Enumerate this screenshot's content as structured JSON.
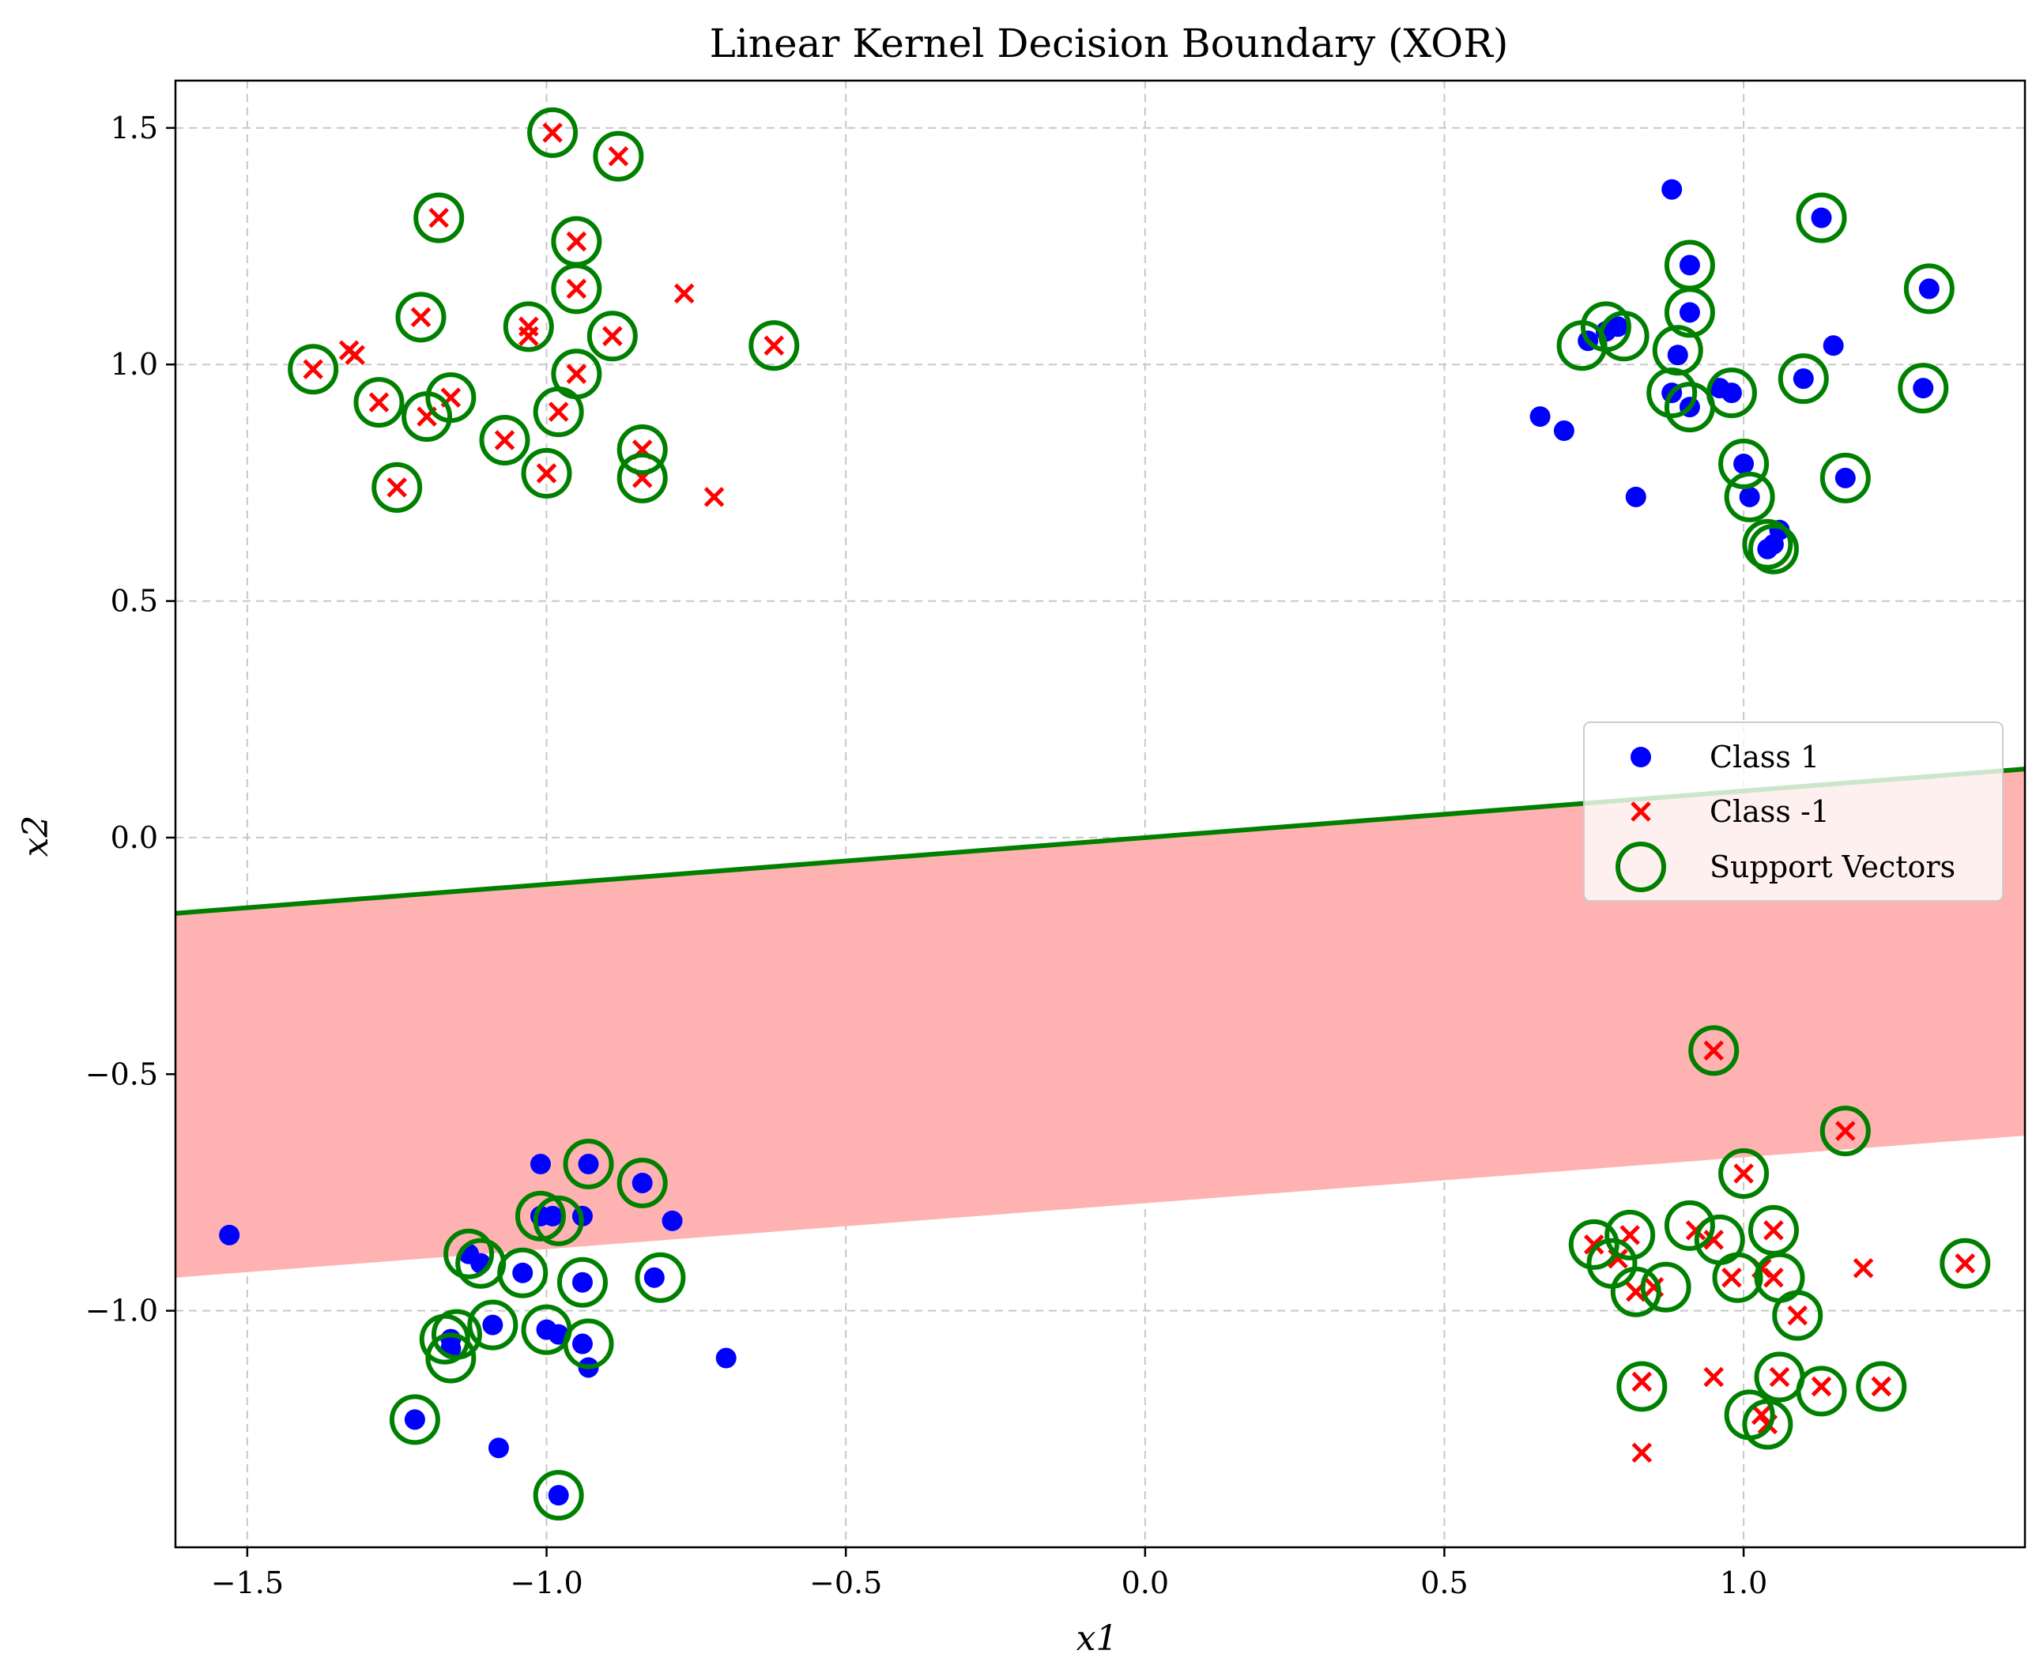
{
  "chart_data": {
    "type": "scatter",
    "title": "Linear Kernel Decision Boundary (XOR)",
    "xlabel": "x1",
    "ylabel": "x2",
    "xlim": [
      -1.62,
      1.47
    ],
    "ylim": [
      -1.5,
      1.6
    ],
    "xticks": [
      -1.5,
      -1.0,
      -0.5,
      0.0,
      0.5,
      1.0
    ],
    "yticks": [
      -1.0,
      -0.5,
      0.0,
      0.5,
      1.0,
      1.5
    ],
    "xtick_labels": [
      "−1.5",
      "−1.0",
      "−0.5",
      "0.0",
      "0.5",
      "1.0"
    ],
    "ytick_labels": [
      "−1.0",
      "−0.5",
      "0.0",
      "0.5",
      "1.0",
      "1.5"
    ],
    "grid": true,
    "legend_position": "center-right",
    "colors": {
      "class_pos": "#0000ff",
      "class_neg": "#ff0000",
      "support": "#008000",
      "boundary": "#008000",
      "region_neg": "#ffb2b2",
      "grid": "#c8c8c8"
    },
    "decision_boundary": {
      "x": [
        -1.62,
        1.47
      ],
      "y": [
        -0.16,
        0.145
      ]
    },
    "margin_region": {
      "upper": {
        "x": [
          -1.62,
          1.47
        ],
        "y": [
          -0.16,
          0.145
        ]
      },
      "lower": {
        "x": [
          -1.62,
          1.47
        ],
        "y": [
          -0.93,
          -0.63
        ]
      }
    },
    "series": [
      {
        "name": "Class 1",
        "marker": "dot",
        "points": [
          [
            0.88,
            1.37
          ],
          [
            1.13,
            1.31
          ],
          [
            0.91,
            1.21
          ],
          [
            1.31,
            1.16
          ],
          [
            0.91,
            1.11
          ],
          [
            0.79,
            1.08
          ],
          [
            0.77,
            1.07
          ],
          [
            0.74,
            1.05
          ],
          [
            1.15,
            1.04
          ],
          [
            0.89,
            1.02
          ],
          [
            1.1,
            0.97
          ],
          [
            1.3,
            0.95
          ],
          [
            0.96,
            0.95
          ],
          [
            0.88,
            0.94
          ],
          [
            0.98,
            0.94
          ],
          [
            0.91,
            0.91
          ],
          [
            0.66,
            0.89
          ],
          [
            0.7,
            0.86
          ],
          [
            1.0,
            0.79
          ],
          [
            1.17,
            0.76
          ],
          [
            0.82,
            0.72
          ],
          [
            1.01,
            0.72
          ],
          [
            1.06,
            0.65
          ],
          [
            1.05,
            0.62
          ],
          [
            1.04,
            0.61
          ],
          [
            -1.01,
            -0.69
          ],
          [
            -0.93,
            -0.69
          ],
          [
            -0.84,
            -0.73
          ],
          [
            -1.01,
            -0.8
          ],
          [
            -0.99,
            -0.8
          ],
          [
            -0.94,
            -0.8
          ],
          [
            -0.79,
            -0.81
          ],
          [
            -1.53,
            -0.84
          ],
          [
            -1.13,
            -0.88
          ],
          [
            -1.11,
            -0.9
          ],
          [
            -1.04,
            -0.92
          ],
          [
            -0.94,
            -0.94
          ],
          [
            -0.82,
            -0.93
          ],
          [
            -1.09,
            -1.03
          ],
          [
            -1.0,
            -1.04
          ],
          [
            -0.98,
            -1.05
          ],
          [
            -1.16,
            -1.06
          ],
          [
            -1.16,
            -1.08
          ],
          [
            -0.94,
            -1.07
          ],
          [
            -0.93,
            -1.12
          ],
          [
            -0.7,
            -1.1
          ],
          [
            -1.22,
            -1.23
          ],
          [
            -1.08,
            -1.29
          ],
          [
            -0.98,
            -1.39
          ]
        ]
      },
      {
        "name": "Class -1",
        "marker": "x",
        "points": [
          [
            -0.99,
            1.49
          ],
          [
            -0.88,
            1.44
          ],
          [
            -1.18,
            1.31
          ],
          [
            -0.95,
            1.26
          ],
          [
            -0.95,
            1.16
          ],
          [
            -0.77,
            1.15
          ],
          [
            -1.21,
            1.1
          ],
          [
            -1.03,
            1.08
          ],
          [
            -1.03,
            1.06
          ],
          [
            -0.89,
            1.06
          ],
          [
            -0.62,
            1.04
          ],
          [
            -1.33,
            1.03
          ],
          [
            -1.32,
            1.02
          ],
          [
            -1.39,
            0.99
          ],
          [
            -0.95,
            0.98
          ],
          [
            -1.16,
            0.93
          ],
          [
            -1.28,
            0.92
          ],
          [
            -0.98,
            0.9
          ],
          [
            -1.2,
            0.89
          ],
          [
            -1.07,
            0.84
          ],
          [
            -0.84,
            0.82
          ],
          [
            -1.0,
            0.77
          ],
          [
            -0.84,
            0.76
          ],
          [
            -1.25,
            0.74
          ],
          [
            -0.72,
            0.72
          ],
          [
            0.95,
            -0.45
          ],
          [
            1.17,
            -0.62
          ],
          [
            1.0,
            -0.71
          ],
          [
            0.81,
            -0.84
          ],
          [
            0.92,
            -0.83
          ],
          [
            1.05,
            -0.83
          ],
          [
            0.95,
            -0.85
          ],
          [
            0.75,
            -0.86
          ],
          [
            0.79,
            -0.89
          ],
          [
            1.03,
            -0.91
          ],
          [
            1.2,
            -0.91
          ],
          [
            1.37,
            -0.9
          ],
          [
            0.98,
            -0.93
          ],
          [
            1.05,
            -0.93
          ],
          [
            0.85,
            -0.95
          ],
          [
            0.82,
            -0.96
          ],
          [
            1.09,
            -1.01
          ],
          [
            1.06,
            -1.14
          ],
          [
            1.13,
            -1.16
          ],
          [
            1.23,
            -1.16
          ],
          [
            0.83,
            -1.15
          ],
          [
            0.95,
            -1.14
          ],
          [
            1.03,
            -1.22
          ],
          [
            1.04,
            -1.24
          ],
          [
            0.83,
            -1.3
          ]
        ]
      },
      {
        "name": "Support Vectors",
        "marker": "ring",
        "points": [
          [
            -0.99,
            1.49
          ],
          [
            -0.88,
            1.44
          ],
          [
            -1.18,
            1.31
          ],
          [
            -0.95,
            1.26
          ],
          [
            -0.95,
            1.16
          ],
          [
            -1.21,
            1.1
          ],
          [
            -1.03,
            1.08
          ],
          [
            -0.89,
            1.06
          ],
          [
            -0.62,
            1.04
          ],
          [
            -1.39,
            0.99
          ],
          [
            -0.95,
            0.98
          ],
          [
            -1.16,
            0.93
          ],
          [
            -1.28,
            0.92
          ],
          [
            -0.98,
            0.9
          ],
          [
            -1.2,
            0.89
          ],
          [
            -1.07,
            0.84
          ],
          [
            -0.84,
            0.82
          ],
          [
            -1.0,
            0.77
          ],
          [
            -0.84,
            0.76
          ],
          [
            -1.25,
            0.74
          ],
          [
            1.13,
            1.31
          ],
          [
            0.91,
            1.21
          ],
          [
            1.31,
            1.16
          ],
          [
            0.91,
            1.11
          ],
          [
            0.77,
            1.08
          ],
          [
            0.8,
            1.06
          ],
          [
            0.73,
            1.04
          ],
          [
            0.89,
            1.03
          ],
          [
            1.1,
            0.97
          ],
          [
            1.3,
            0.95
          ],
          [
            0.98,
            0.94
          ],
          [
            0.88,
            0.94
          ],
          [
            0.91,
            0.91
          ],
          [
            1.0,
            0.79
          ],
          [
            1.17,
            0.76
          ],
          [
            1.01,
            0.72
          ],
          [
            1.04,
            0.62
          ],
          [
            1.05,
            0.61
          ],
          [
            -0.93,
            -0.69
          ],
          [
            -0.84,
            -0.73
          ],
          [
            -1.01,
            -0.8
          ],
          [
            -0.98,
            -0.81
          ],
          [
            -1.13,
            -0.88
          ],
          [
            -1.11,
            -0.9
          ],
          [
            -1.04,
            -0.92
          ],
          [
            -0.94,
            -0.94
          ],
          [
            -0.81,
            -0.93
          ],
          [
            -1.09,
            -1.03
          ],
          [
            -1.0,
            -1.04
          ],
          [
            -1.17,
            -1.06
          ],
          [
            -1.15,
            -1.05
          ],
          [
            -0.93,
            -1.07
          ],
          [
            -1.16,
            -1.1
          ],
          [
            -1.22,
            -1.23
          ],
          [
            -0.98,
            -1.39
          ],
          [
            0.95,
            -0.45
          ],
          [
            1.17,
            -0.62
          ],
          [
            1.0,
            -0.71
          ],
          [
            0.81,
            -0.84
          ],
          [
            0.91,
            -0.82
          ],
          [
            1.05,
            -0.83
          ],
          [
            0.96,
            -0.85
          ],
          [
            0.75,
            -0.86
          ],
          [
            0.78,
            -0.9
          ],
          [
            1.37,
            -0.9
          ],
          [
            0.99,
            -0.93
          ],
          [
            1.06,
            -0.93
          ],
          [
            0.87,
            -0.95
          ],
          [
            0.82,
            -0.96
          ],
          [
            1.09,
            -1.01
          ],
          [
            0.83,
            -1.16
          ],
          [
            1.06,
            -1.14
          ],
          [
            1.13,
            -1.17
          ],
          [
            1.23,
            -1.16
          ],
          [
            1.01,
            -1.22
          ],
          [
            1.04,
            -1.24
          ]
        ]
      }
    ]
  }
}
